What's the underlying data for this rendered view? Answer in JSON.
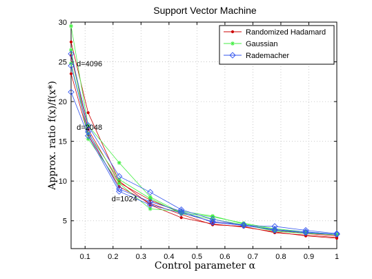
{
  "chart_data": {
    "type": "line",
    "title": "Support Vector Machine",
    "xlabel": "Control parameter α",
    "ylabel": "Approx. ratio f(x)/f(x*)",
    "xlim": [
      0.05,
      1.0
    ],
    "ylim": [
      1.5,
      30
    ],
    "xticks": [
      0.1,
      0.2,
      0.3,
      0.4,
      0.5,
      0.6,
      0.7,
      0.8,
      0.9,
      1
    ],
    "xtick_labels": [
      "0.1",
      "0.2",
      "0.3",
      "0.4",
      "0.5",
      "0.6",
      "0.7",
      "0.8",
      "0.9",
      "1"
    ],
    "yticks": [
      5,
      10,
      15,
      20,
      25,
      30
    ],
    "ytick_labels": [
      "5",
      "10",
      "15",
      "20",
      "25",
      "30"
    ],
    "grid": true,
    "legend_position": "top-right",
    "x": [
      0.05,
      0.111,
      0.222,
      0.333,
      0.444,
      0.556,
      0.667,
      0.778,
      0.889,
      1.0
    ],
    "series": [
      {
        "name": "Randomized Hadamard",
        "color": "#cc0000",
        "marker": "dot",
        "lines": [
          [
            27.5,
            18.6,
            10.0,
            7.0,
            5.4,
            4.6,
            4.2,
            3.6,
            3.1,
            2.8
          ],
          [
            25.8,
            16.5,
            9.8,
            7.6,
            6.0,
            4.9,
            4.5,
            3.8,
            3.4,
            3.1
          ],
          [
            23.5,
            15.8,
            9.3,
            7.2,
            5.8,
            4.5,
            4.3,
            3.5,
            3.2,
            2.9
          ]
        ]
      },
      {
        "name": "Gaussian",
        "color": "#44ee44",
        "marker": "star",
        "lines": [
          [
            29.5,
            17.0,
            12.3,
            8.0,
            6.0,
            5.5,
            4.7,
            4.0,
            3.6,
            3.3
          ],
          [
            26.5,
            15.3,
            9.7,
            6.5,
            6.2,
            5.6,
            4.6,
            3.9,
            3.5,
            3.2
          ],
          [
            24.8,
            16.0,
            10.2,
            7.8,
            5.9,
            5.2,
            4.5,
            3.7,
            3.4,
            3.3
          ]
        ]
      },
      {
        "name": "Rademacher",
        "color": "#3355ee",
        "marker": "diamond",
        "lines": [
          [
            26.0,
            17.0,
            10.6,
            8.6,
            6.4,
            5.2,
            4.4,
            4.3,
            3.8,
            3.4
          ],
          [
            24.5,
            16.2,
            9.0,
            7.4,
            6.2,
            4.8,
            4.4,
            3.9,
            3.6,
            3.3
          ],
          [
            21.2,
            15.7,
            8.7,
            7.0,
            6.0,
            4.9,
            4.5,
            3.8,
            3.5,
            3.3
          ]
        ]
      }
    ],
    "annotations": [
      {
        "text": "d=4096",
        "x": 0.07,
        "y": 24.8
      },
      {
        "text": "d=2048",
        "x": 0.07,
        "y": 16.8
      },
      {
        "text": "d=1024",
        "x": 0.195,
        "y": 7.8
      }
    ]
  }
}
